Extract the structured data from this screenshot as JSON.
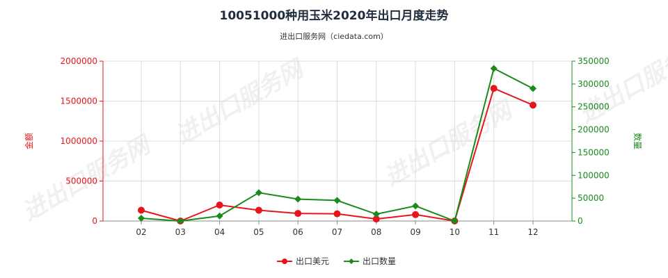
{
  "chart_data": {
    "type": "line",
    "title": "10051000种用玉米2020年出口月度走势",
    "subtitle": "进出口服务网（ciedata.com）",
    "categories": [
      "02",
      "03",
      "04",
      "05",
      "06",
      "07",
      "08",
      "09",
      "10",
      "11",
      "12"
    ],
    "y_left": {
      "label": "金额",
      "min": 0,
      "max": 2000000,
      "ticks": [
        0,
        500000,
        1000000,
        1500000,
        2000000
      ],
      "tick_labels": [
        "0",
        "500000",
        "1000000",
        "1500000",
        "2000000"
      ]
    },
    "y_right": {
      "label": "数量",
      "min": 0,
      "max": 350000,
      "ticks": [
        0,
        50000,
        100000,
        150000,
        200000,
        250000,
        300000,
        350000
      ],
      "tick_labels": [
        "0",
        "50000",
        "100000",
        "150000",
        "200000",
        "250000",
        "300000",
        "350000"
      ]
    },
    "grid": true,
    "legend_position": "bottom-center",
    "series": [
      {
        "name": "出口美元",
        "axis": "left",
        "color": "#e8141b",
        "values": [
          135000,
          0,
          200000,
          135000,
          95000,
          90000,
          25000,
          80000,
          0,
          1660000,
          1450000
        ]
      },
      {
        "name": "出口数量",
        "axis": "right",
        "color": "#1a8a1a",
        "values": [
          6000,
          0,
          11000,
          62000,
          48000,
          45000,
          15000,
          33000,
          0,
          334000,
          290000
        ]
      }
    ]
  },
  "watermark": "进出口服务网"
}
